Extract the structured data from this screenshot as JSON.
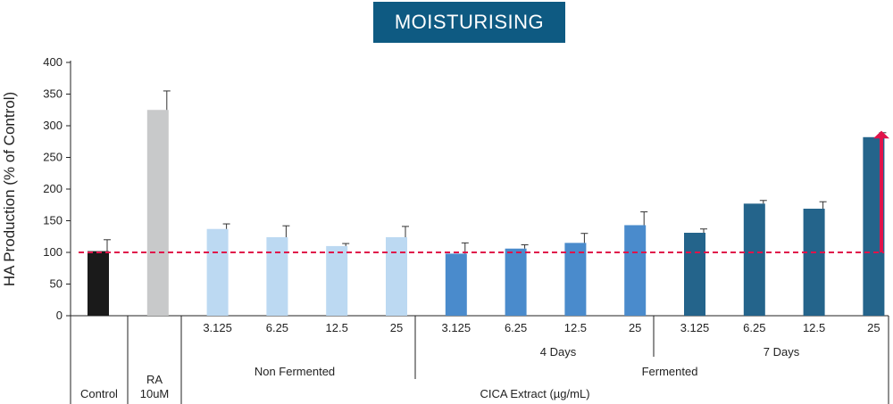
{
  "title": "MOISTURISING",
  "colors": {
    "banner": "#0e5a82",
    "control": "#1a1a1a",
    "ra": "#c8c9ca",
    "non_fermented": "#bcd9f2",
    "fermented_4d": "#4a8bcc",
    "fermented_7d": "#24648b",
    "baseline": "#e0134a",
    "arrow": "#e0134a"
  },
  "chart_data": {
    "type": "bar",
    "ylabel": "HA Production (% of Control)",
    "ylim": [
      0,
      400
    ],
    "yticks": [
      0,
      50,
      100,
      150,
      200,
      250,
      300,
      350,
      400
    ],
    "baseline": 100,
    "bars": [
      {
        "group": "Control",
        "label": "",
        "value": 102,
        "error": 18,
        "color_key": "control"
      },
      {
        "group": "RA 10uM",
        "label": "",
        "value": 325,
        "error": 30,
        "color_key": "ra"
      },
      {
        "group": "Non Fermented",
        "label": "3.125",
        "value": 137,
        "error": 8,
        "color_key": "non_fermented"
      },
      {
        "group": "Non Fermented",
        "label": "6.25",
        "value": 124,
        "error": 18,
        "color_key": "non_fermented"
      },
      {
        "group": "Non Fermented",
        "label": "12.5",
        "value": 110,
        "error": 4,
        "color_key": "non_fermented"
      },
      {
        "group": "Non Fermented",
        "label": "25",
        "value": 124,
        "error": 17,
        "color_key": "non_fermented"
      },
      {
        "group": "Fermented 4 Days",
        "label": "3.125",
        "value": 98,
        "error": 17,
        "color_key": "fermented_4d"
      },
      {
        "group": "Fermented 4 Days",
        "label": "6.25",
        "value": 106,
        "error": 6,
        "color_key": "fermented_4d"
      },
      {
        "group": "Fermented 4 Days",
        "label": "12.5",
        "value": 115,
        "error": 15,
        "color_key": "fermented_4d"
      },
      {
        "group": "Fermented 4 Days",
        "label": "25",
        "value": 143,
        "error": 21,
        "color_key": "fermented_4d"
      },
      {
        "group": "Fermented 7 Days",
        "label": "3.125",
        "value": 131,
        "error": 6,
        "color_key": "fermented_7d"
      },
      {
        "group": "Fermented 7 Days",
        "label": "6.25",
        "value": 177,
        "error": 5,
        "color_key": "fermented_7d"
      },
      {
        "group": "Fermented 7 Days",
        "label": "12.5",
        "value": 169,
        "error": 11,
        "color_key": "fermented_7d"
      },
      {
        "group": "Fermented 7 Days",
        "label": "25",
        "value": 282,
        "error": 7,
        "color_key": "fermented_7d"
      }
    ],
    "category_labels": {
      "control": "Control",
      "ra_line1": "RA",
      "ra_line2": "10uM",
      "non_fermented": "Non Fermented",
      "four_days": "4 Days",
      "seven_days": "7 Days",
      "fermented": "Fermented",
      "cica_extract": "CICA Extract (µg/mL)"
    },
    "annotations": [
      "upward arrow marking increase at 7 Days 25"
    ],
    "grid": false,
    "legend": "none"
  }
}
